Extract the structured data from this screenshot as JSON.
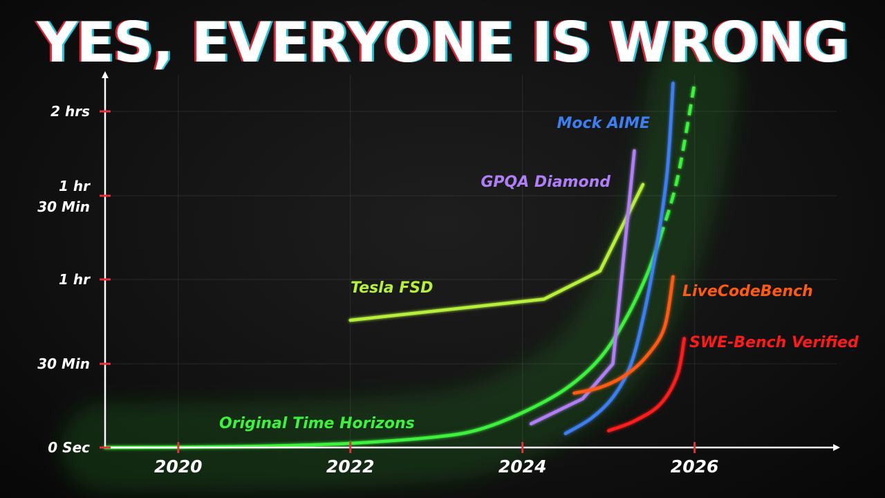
{
  "headline": "YES, EVERYONE IS WRONG",
  "colors": {
    "background": "#0b0b0b",
    "axis": "#ffffff",
    "tick_accent": "#e8303c",
    "glow": "#3ad43a"
  },
  "chart_data": {
    "type": "line",
    "title": "YES, EVERYONE IS WRONG",
    "xlabel": "",
    "ylabel": "",
    "x_ticks": [
      {
        "value": 2020,
        "label": "2020"
      },
      {
        "value": 2022,
        "label": "2022"
      },
      {
        "value": 2024,
        "label": "2024"
      },
      {
        "value": 2026,
        "label": "2026"
      }
    ],
    "y_ticks": [
      {
        "label": "0 Sec"
      },
      {
        "label": "30 Min"
      },
      {
        "label": "1 hr"
      },
      {
        "label": "1 hr\n30 Min"
      },
      {
        "label": "2 hrs"
      }
    ],
    "y_tick_values_minutes": [
      0,
      30,
      60,
      90,
      120
    ],
    "xlim": [
      2019.15,
      2027.65
    ],
    "ylim_minutes": [
      0,
      130
    ],
    "grid": true,
    "legend": "inline labels",
    "series": [
      {
        "name": "Original Time Horizons",
        "color": "#3df23d",
        "points": [
          [
            2019.15,
            0
          ],
          [
            2020,
            0.1
          ],
          [
            2021,
            0.5
          ],
          [
            2022,
            1.5
          ],
          [
            2023,
            3.8
          ],
          [
            2023.5,
            6.5
          ],
          [
            2024,
            12.5
          ],
          [
            2024.5,
            21
          ],
          [
            2024.9,
            32
          ],
          [
            2025.2,
            46
          ],
          [
            2025.45,
            62
          ],
          [
            2025.6,
            75
          ]
        ],
        "dashed_extension": [
          [
            2025.6,
            75
          ],
          [
            2025.8,
            96
          ],
          [
            2026,
            130
          ]
        ]
      },
      {
        "name": "Tesla FSD",
        "color": "#b6f03a",
        "points": [
          [
            2022,
            45.5
          ],
          [
            2024.25,
            53
          ],
          [
            2024.9,
            63
          ],
          [
            2025.4,
            94
          ]
        ]
      },
      {
        "name": "GPQA Diamond",
        "color": "#b07ef7",
        "points": [
          [
            2024.1,
            8.5
          ],
          [
            2024.7,
            17.5
          ],
          [
            2025.05,
            30
          ],
          [
            2025.3,
            106
          ]
        ]
      },
      {
        "name": "Mock AIME",
        "color": "#3d7ff2",
        "points": [
          [
            2024.5,
            5
          ],
          [
            2024.8,
            10.5
          ],
          [
            2025.05,
            18
          ],
          [
            2025.25,
            29
          ],
          [
            2025.4,
            46
          ],
          [
            2025.55,
            70
          ],
          [
            2025.68,
            98
          ],
          [
            2025.75,
            130
          ]
        ]
      },
      {
        "name": "LiveCodeBench",
        "color": "#ff5a12",
        "points": [
          [
            2024.6,
            19.5
          ],
          [
            2024.9,
            21.5
          ],
          [
            2025.2,
            26
          ],
          [
            2025.45,
            33
          ],
          [
            2025.65,
            43
          ],
          [
            2025.75,
            61
          ]
        ]
      },
      {
        "name": "SWE-Bench Verified",
        "color": "#ff1a1a",
        "points": [
          [
            2025,
            6
          ],
          [
            2025.3,
            9.5
          ],
          [
            2025.6,
            15.5
          ],
          [
            2025.8,
            26
          ],
          [
            2025.88,
            39
          ]
        ]
      }
    ]
  }
}
